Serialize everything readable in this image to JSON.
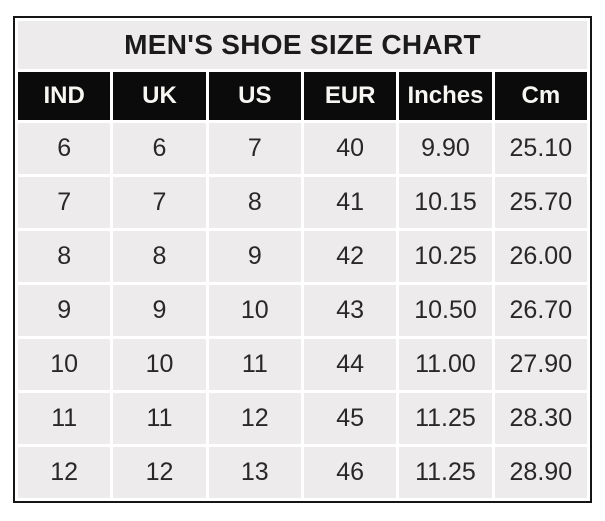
{
  "chart_data": {
    "type": "table",
    "title": "MEN'S SHOE SIZE CHART",
    "columns": [
      "IND",
      "UK",
      "US",
      "EUR",
      "Inches",
      "Cm"
    ],
    "rows": [
      [
        "6",
        "6",
        "7",
        "40",
        "9.90",
        "25.10"
      ],
      [
        "7",
        "7",
        "8",
        "41",
        "10.15",
        "25.70"
      ],
      [
        "8",
        "8",
        "9",
        "42",
        "10.25",
        "26.00"
      ],
      [
        "9",
        "9",
        "10",
        "43",
        "10.50",
        "26.70"
      ],
      [
        "10",
        "10",
        "11",
        "44",
        "11.00",
        "27.90"
      ],
      [
        "11",
        "11",
        "12",
        "45",
        "11.25",
        "28.30"
      ],
      [
        "12",
        "12",
        "13",
        "46",
        "11.25",
        "28.90"
      ]
    ]
  },
  "colors": {
    "frame_border": "#151515",
    "header_bg": "#0b0b0b",
    "header_text": "#f7f6f2",
    "cell_bg": "#edebec",
    "cell_text": "#282828",
    "gridline": "#ffffff",
    "page_bg": "#ffffff"
  }
}
